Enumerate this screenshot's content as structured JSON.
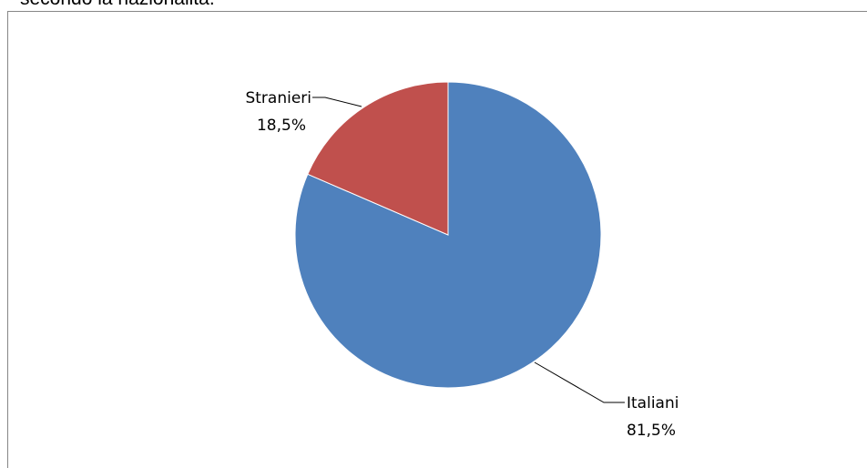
{
  "caption": "secondo la nazionalità.",
  "chart_data": {
    "type": "pie",
    "slices": [
      {
        "name": "Italiani",
        "value": 81.5,
        "label": "81,5%",
        "color": "#4F81BD"
      },
      {
        "name": "Stranieri",
        "value": 18.5,
        "label": "18,5%",
        "color": "#C0504D"
      }
    ],
    "start": "12 o'clock",
    "direction": "clockwise",
    "legend": "none",
    "data_labels": "outside with leader lines"
  }
}
